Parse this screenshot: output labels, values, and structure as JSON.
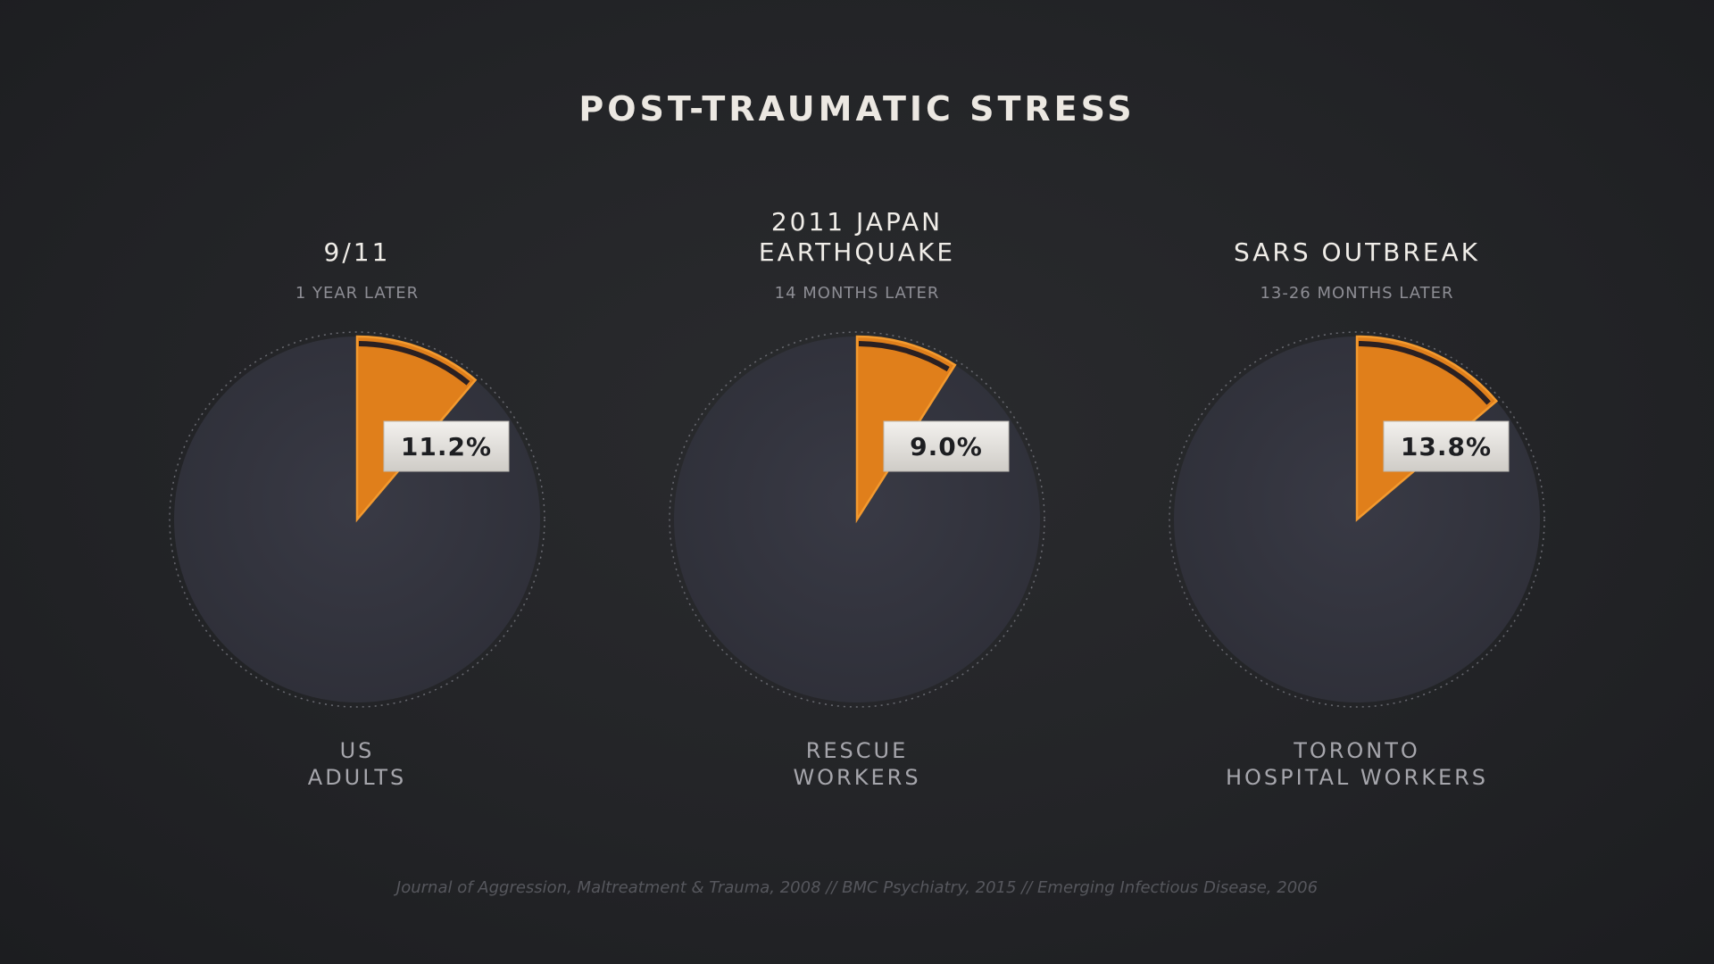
{
  "title": "POST-TRAUMATIC STRESS",
  "colors": {
    "slice": "#e07f1b",
    "slice_edge": "#f39a2f",
    "pie_fill": "#34353f",
    "label_box": "#e9e6e2"
  },
  "chart_data": [
    {
      "type": "pie",
      "title": [
        "9/11"
      ],
      "subtitle": "1 YEAR LATER",
      "category_label": [
        "US",
        "ADULTS"
      ],
      "value": 11.2,
      "value_label": "11.2%",
      "unit": "%"
    },
    {
      "type": "pie",
      "title": [
        "2011 JAPAN",
        "EARTHQUAKE"
      ],
      "subtitle": "14 MONTHS LATER",
      "category_label": [
        "RESCUE",
        "WORKERS"
      ],
      "value": 9.0,
      "value_label": "9.0%",
      "unit": "%"
    },
    {
      "type": "pie",
      "title": [
        "SARS OUTBREAK"
      ],
      "subtitle": "13-26 MONTHS LATER",
      "category_label": [
        "TORONTO",
        "HOSPITAL WORKERS"
      ],
      "value": 13.8,
      "value_label": "13.8%",
      "unit": "%"
    }
  ],
  "source": "Journal of Aggression, Maltreatment & Trauma, 2008 // BMC Psychiatry, 2015 // Emerging Infectious Disease, 2006"
}
